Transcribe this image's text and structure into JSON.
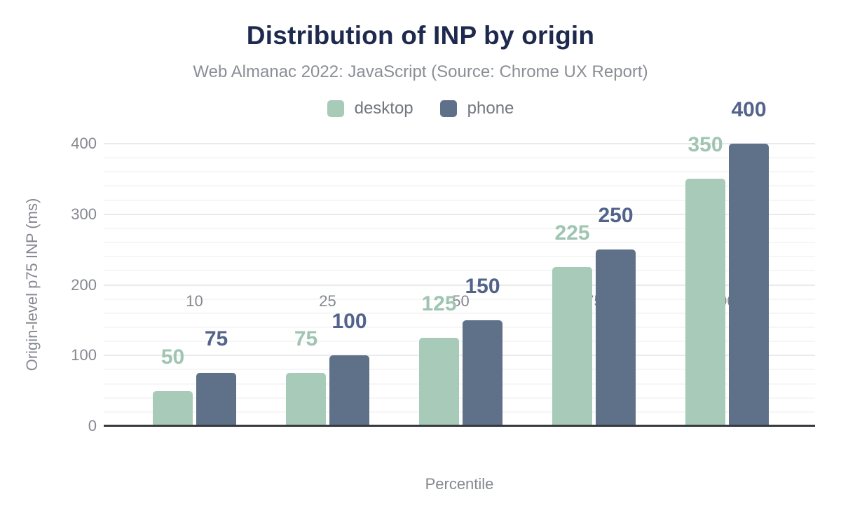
{
  "chart": {
    "title": "Distribution of INP by origin",
    "subtitle": "Web Almanac 2022: JavaScript (Source: Chrome UX Report)"
  },
  "chart_data": {
    "type": "bar",
    "title": "Distribution of INP by origin",
    "subtitle": "Web Almanac 2022: JavaScript (Source: Chrome UX Report)",
    "categories": [
      "10",
      "25",
      "50",
      "75",
      "90"
    ],
    "series": [
      {
        "name": "desktop",
        "color": "#a7cab9",
        "label_color": "#9fc5b2",
        "values": [
          50,
          75,
          125,
          225,
          350
        ]
      },
      {
        "name": "phone",
        "color": "#5f7089",
        "label_color": "#52648a",
        "values": [
          75,
          100,
          150,
          250,
          400
        ]
      }
    ],
    "xlabel": "Percentile",
    "ylabel": "Origin-level p75 INP (ms)",
    "ylim": [
      0,
      400
    ],
    "yticks": [
      0,
      100,
      200,
      300,
      400
    ],
    "minor_grid_step": 20,
    "major_grid_step": 100,
    "grid": true,
    "legend_position": "top",
    "data_labels": true,
    "grid_major_color": "#e9eaec",
    "grid_minor_color": "#f6f6f7",
    "axis_line_color": "#393a3f",
    "title_color": "#1e2a4d",
    "muted_text_color": "#85888f"
  }
}
